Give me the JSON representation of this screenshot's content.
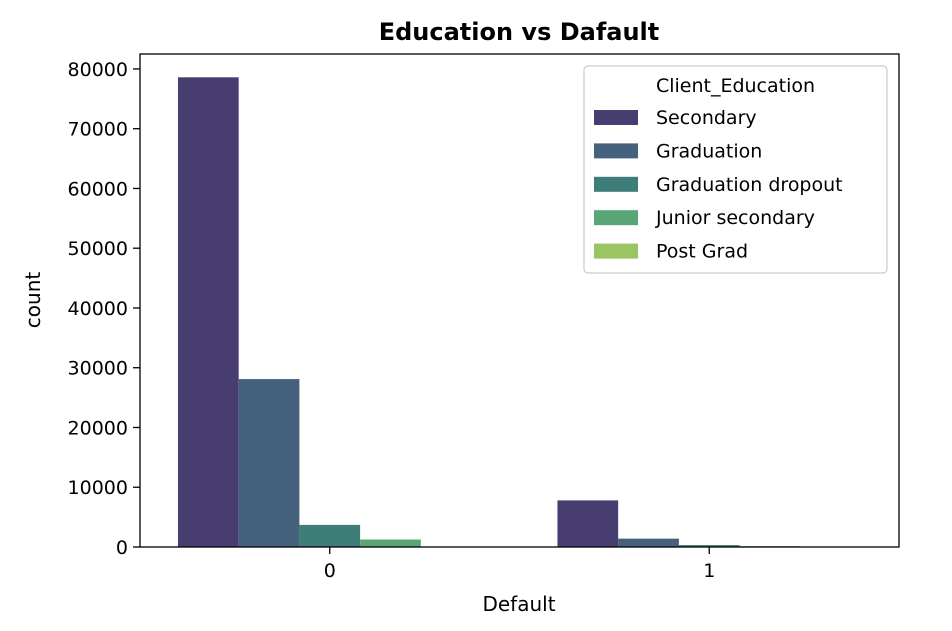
{
  "chart_data": {
    "type": "bar",
    "title": "Education vs Dafault",
    "xlabel": "Default",
    "ylabel": "count",
    "categories": [
      "0",
      "1"
    ],
    "ylim": [
      0,
      82500
    ],
    "yticks": [
      0,
      10000,
      20000,
      30000,
      40000,
      50000,
      60000,
      70000,
      80000
    ],
    "grid": false,
    "legend": {
      "title": "Client_Education",
      "placement": "top-right"
    },
    "series": [
      {
        "name": "Secondary",
        "color": "#483d70",
        "values": [
          78600,
          7800
        ]
      },
      {
        "name": "Graduation",
        "color": "#46617d",
        "values": [
          28100,
          1400
        ]
      },
      {
        "name": "Graduation dropout",
        "color": "#3f7d78",
        "values": [
          3700,
          320
        ]
      },
      {
        "name": "Junior secondary",
        "color": "#5aa575",
        "values": [
          1250,
          130
        ]
      },
      {
        "name": "Post Grad",
        "color": "#9bc462",
        "values": [
          70,
          10
        ]
      }
    ]
  }
}
